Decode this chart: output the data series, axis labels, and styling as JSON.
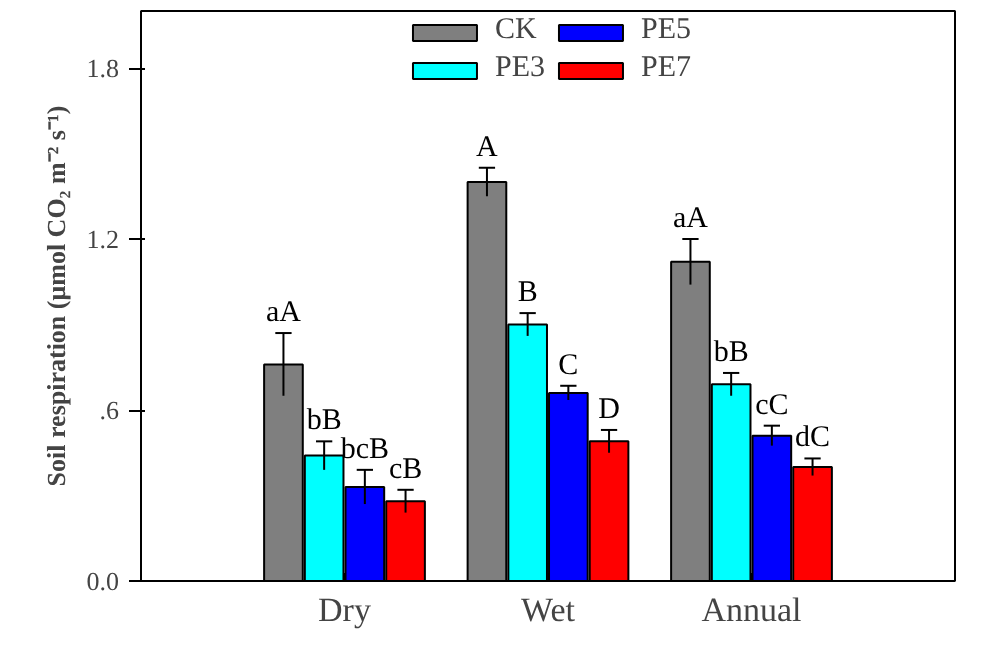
{
  "chart_data": {
    "type": "bar",
    "ylabel": "Soil respiration (μmol CO₂ m⁻² s⁻¹)",
    "categories": [
      "Dry",
      "Wet",
      "Annual"
    ],
    "series": [
      {
        "name": "CK",
        "color": "#7f7f7f",
        "values": [
          0.76,
          1.4,
          1.12
        ],
        "errors": [
          0.11,
          0.05,
          0.08
        ],
        "value_labels": [
          "aA",
          "A",
          "aA"
        ]
      },
      {
        "name": "PE3",
        "color": "#00ffff",
        "values": [
          0.44,
          0.9,
          0.69
        ],
        "errors": [
          0.05,
          0.04,
          0.04
        ],
        "value_labels": [
          "bB",
          "B",
          "bB"
        ]
      },
      {
        "name": "PE5",
        "color": "#0000ff",
        "values": [
          0.33,
          0.66,
          0.51
        ],
        "errors": [
          0.06,
          0.025,
          0.035
        ],
        "value_labels": [
          "bcB",
          "C",
          "cC"
        ]
      },
      {
        "name": "PE7",
        "color": "#ff0000",
        "values": [
          0.28,
          0.49,
          0.4
        ],
        "errors": [
          0.04,
          0.04,
          0.03
        ],
        "value_labels": [
          "cB",
          "D",
          "dC"
        ]
      }
    ],
    "ylim": [
      0,
      2.0
    ],
    "yticks": [
      {
        "value": 0,
        "label": "0.0"
      },
      {
        "value": 0.6,
        "label": ".6"
      },
      1.2,
      1.8
    ],
    "grid": false,
    "legend": "top"
  }
}
